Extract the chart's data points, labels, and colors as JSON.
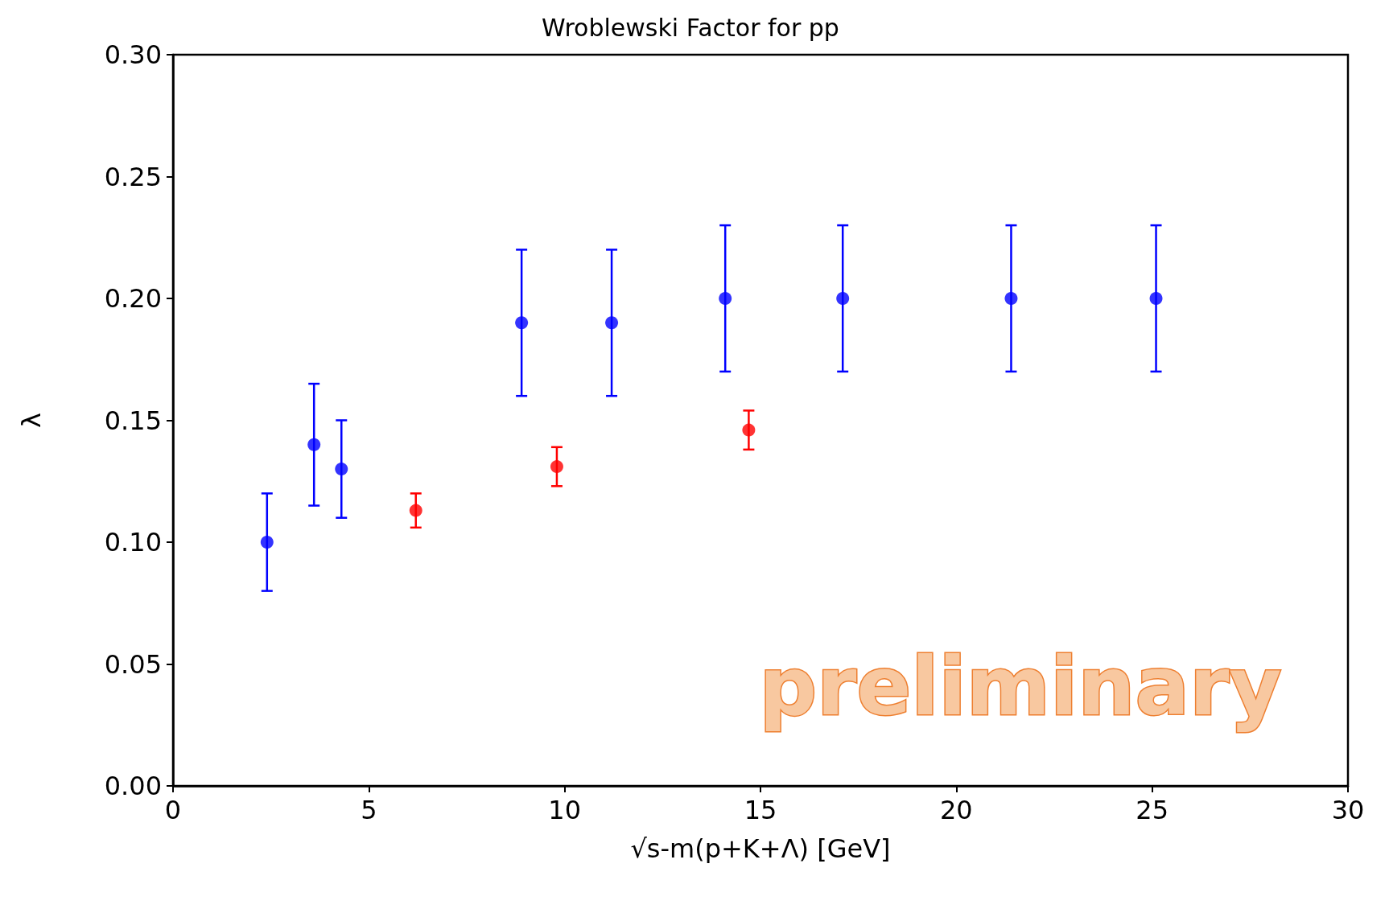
{
  "chart_data": {
    "type": "scatter",
    "title": "Wroblewski Factor for pp",
    "xlabel": "√s-m(p+K+Λ) [GeV]",
    "ylabel": "λ",
    "series": [
      {
        "color": "#0000ff",
        "x": [
          2.4,
          3.6,
          4.3,
          8.9,
          11.2,
          14.1,
          17.1,
          21.4,
          25.1
        ],
        "values": [
          0.1,
          0.14,
          0.13,
          0.19,
          0.19,
          0.2,
          0.2,
          0.2,
          0.2
        ],
        "errors": [
          0.02,
          0.025,
          0.02,
          0.03,
          0.03,
          0.03,
          0.03,
          0.03,
          0.03
        ]
      },
      {
        "color": "#ff0000",
        "x": [
          6.2,
          9.8,
          14.7
        ],
        "values": [
          0.113,
          0.131,
          0.146
        ],
        "errors": [
          0.007,
          0.008,
          0.008
        ]
      }
    ],
    "xlim": [
      0,
      30
    ],
    "xticks": [
      0,
      5,
      10,
      15,
      20,
      25,
      30
    ],
    "ylim": [
      0,
      0.3
    ],
    "yticks": [
      {
        "value": 0,
        "label": "0.00"
      },
      {
        "value": 0.05,
        "label": "0.05"
      },
      {
        "value": 0.1,
        "label": "0.10"
      },
      {
        "value": 0.15,
        "label": "0.15"
      },
      {
        "value": 0.2,
        "label": "0.20"
      },
      {
        "value": 0.25,
        "label": "0.25"
      },
      {
        "value": 0.3,
        "label": "0.30"
      }
    ],
    "grid": false,
    "marker": "circle",
    "annotations": [
      "preliminary"
    ]
  }
}
